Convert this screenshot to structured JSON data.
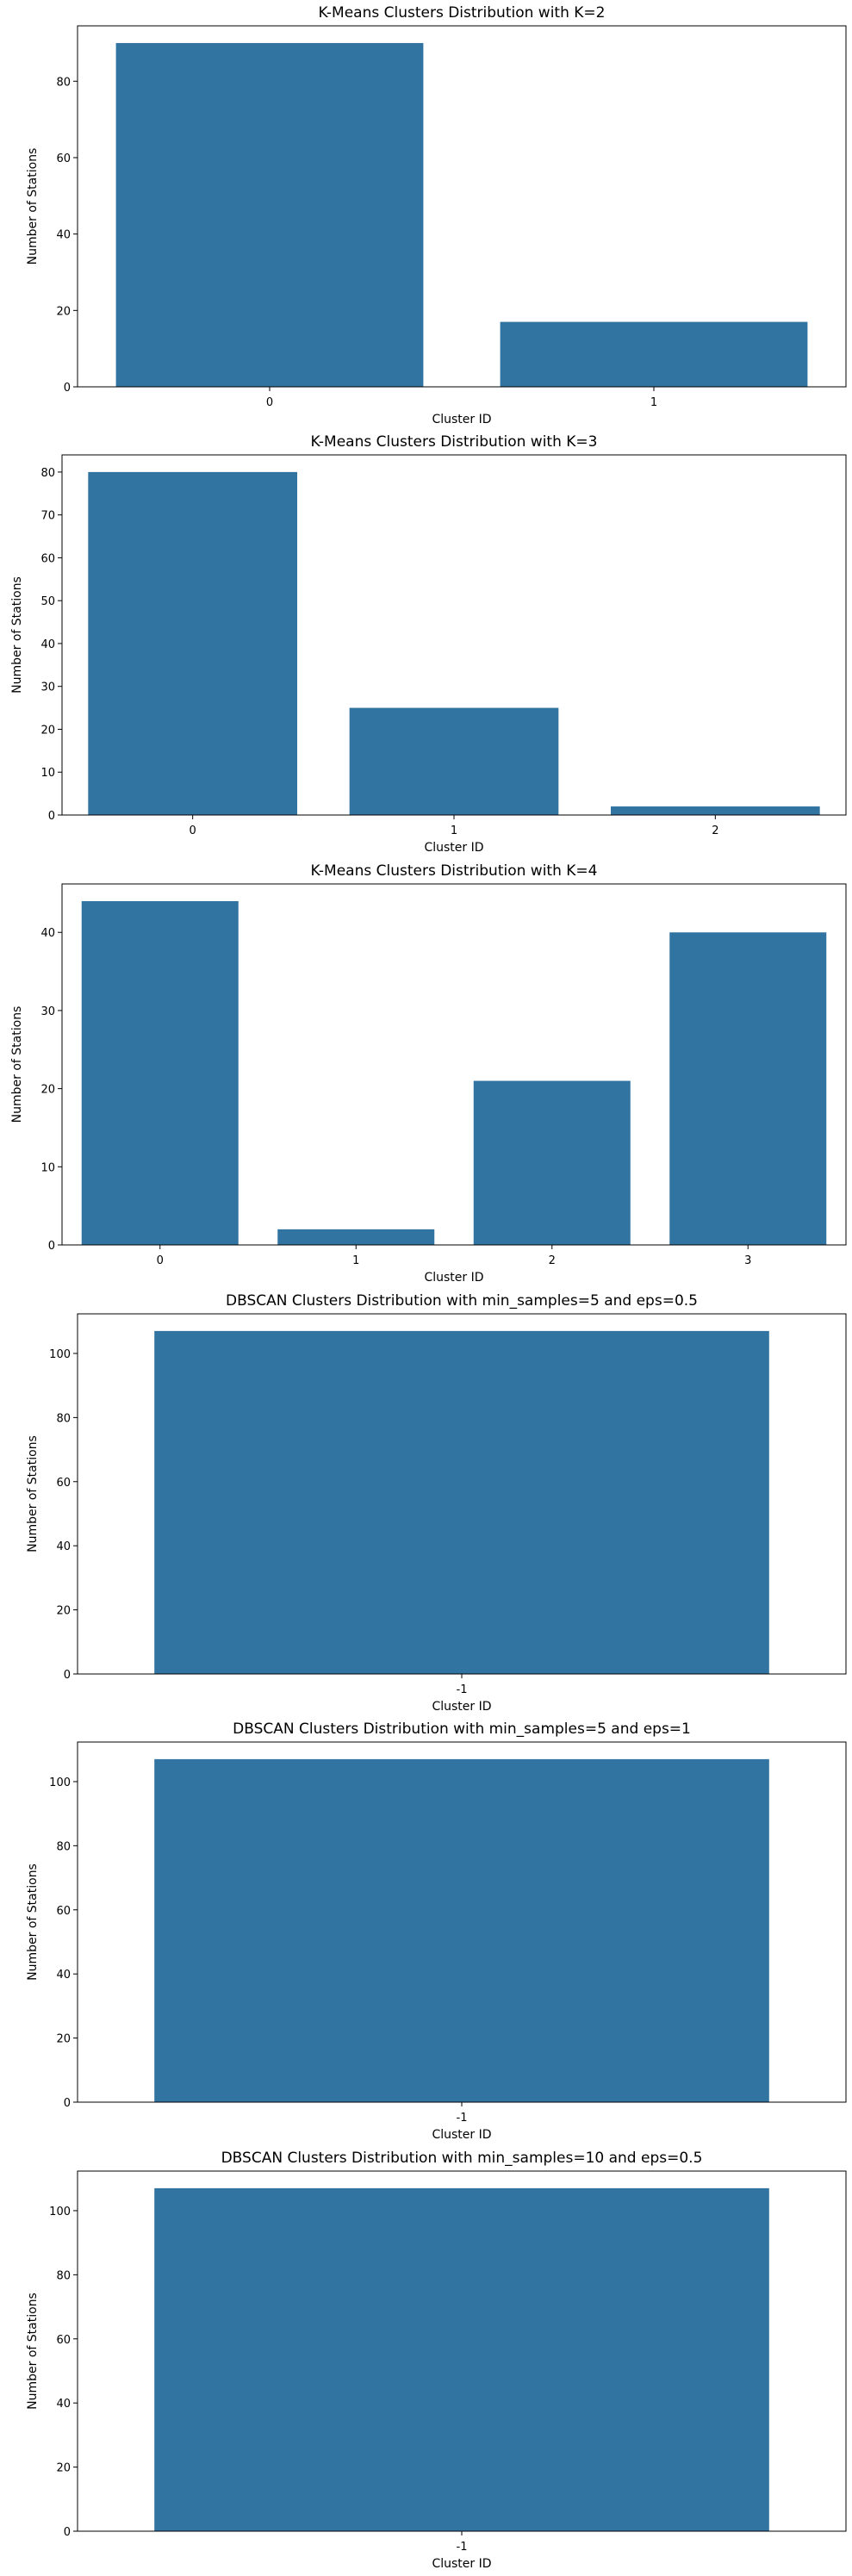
{
  "colors": {
    "bar": "#3274a1",
    "axis": "#000000",
    "background": "#ffffff"
  },
  "chart_data": [
    {
      "type": "bar",
      "title": "K-Means Clusters Distribution with K=2",
      "xlabel": "Cluster ID",
      "ylabel": "Number of Stations",
      "categories": [
        "0",
        "1"
      ],
      "values": [
        90,
        17
      ],
      "ylim": [
        0,
        94.5
      ],
      "yticks": [
        0,
        20,
        40,
        60,
        80
      ],
      "grid": false,
      "legend": "none"
    },
    {
      "type": "bar",
      "title": "K-Means Clusters Distribution with K=3",
      "xlabel": "Cluster ID",
      "ylabel": "Number of Stations",
      "categories": [
        "0",
        "1",
        "2"
      ],
      "values": [
        80,
        25,
        2
      ],
      "ylim": [
        0,
        84
      ],
      "yticks": [
        0,
        10,
        20,
        30,
        40,
        50,
        60,
        70,
        80
      ],
      "grid": false,
      "legend": "none"
    },
    {
      "type": "bar",
      "title": "K-Means Clusters Distribution with K=4",
      "xlabel": "Cluster ID",
      "ylabel": "Number of Stations",
      "categories": [
        "0",
        "1",
        "2",
        "3"
      ],
      "values": [
        44,
        2,
        21,
        40
      ],
      "ylim": [
        0,
        46.2
      ],
      "yticks": [
        0,
        10,
        20,
        30,
        40
      ],
      "grid": false,
      "legend": "none"
    },
    {
      "type": "bar",
      "title": "DBSCAN Clusters Distribution with min_samples=5 and eps=0.5",
      "xlabel": "Cluster ID",
      "ylabel": "Number of Stations",
      "categories": [
        "-1"
      ],
      "values": [
        107
      ],
      "ylim": [
        0,
        112.35
      ],
      "yticks": [
        0,
        20,
        40,
        60,
        80,
        100
      ],
      "grid": false,
      "legend": "none"
    },
    {
      "type": "bar",
      "title": "DBSCAN Clusters Distribution with min_samples=5 and eps=1",
      "xlabel": "Cluster ID",
      "ylabel": "Number of Stations",
      "categories": [
        "-1"
      ],
      "values": [
        107
      ],
      "ylim": [
        0,
        112.35
      ],
      "yticks": [
        0,
        20,
        40,
        60,
        80,
        100
      ],
      "grid": false,
      "legend": "none"
    },
    {
      "type": "bar",
      "title": "DBSCAN Clusters Distribution with min_samples=10 and eps=0.5",
      "xlabel": "Cluster ID",
      "ylabel": "Number of Stations",
      "categories": [
        "-1"
      ],
      "values": [
        107
      ],
      "ylim": [
        0,
        112.35
      ],
      "yticks": [
        0,
        20,
        40,
        60,
        80,
        100
      ],
      "grid": false,
      "legend": "none"
    }
  ]
}
